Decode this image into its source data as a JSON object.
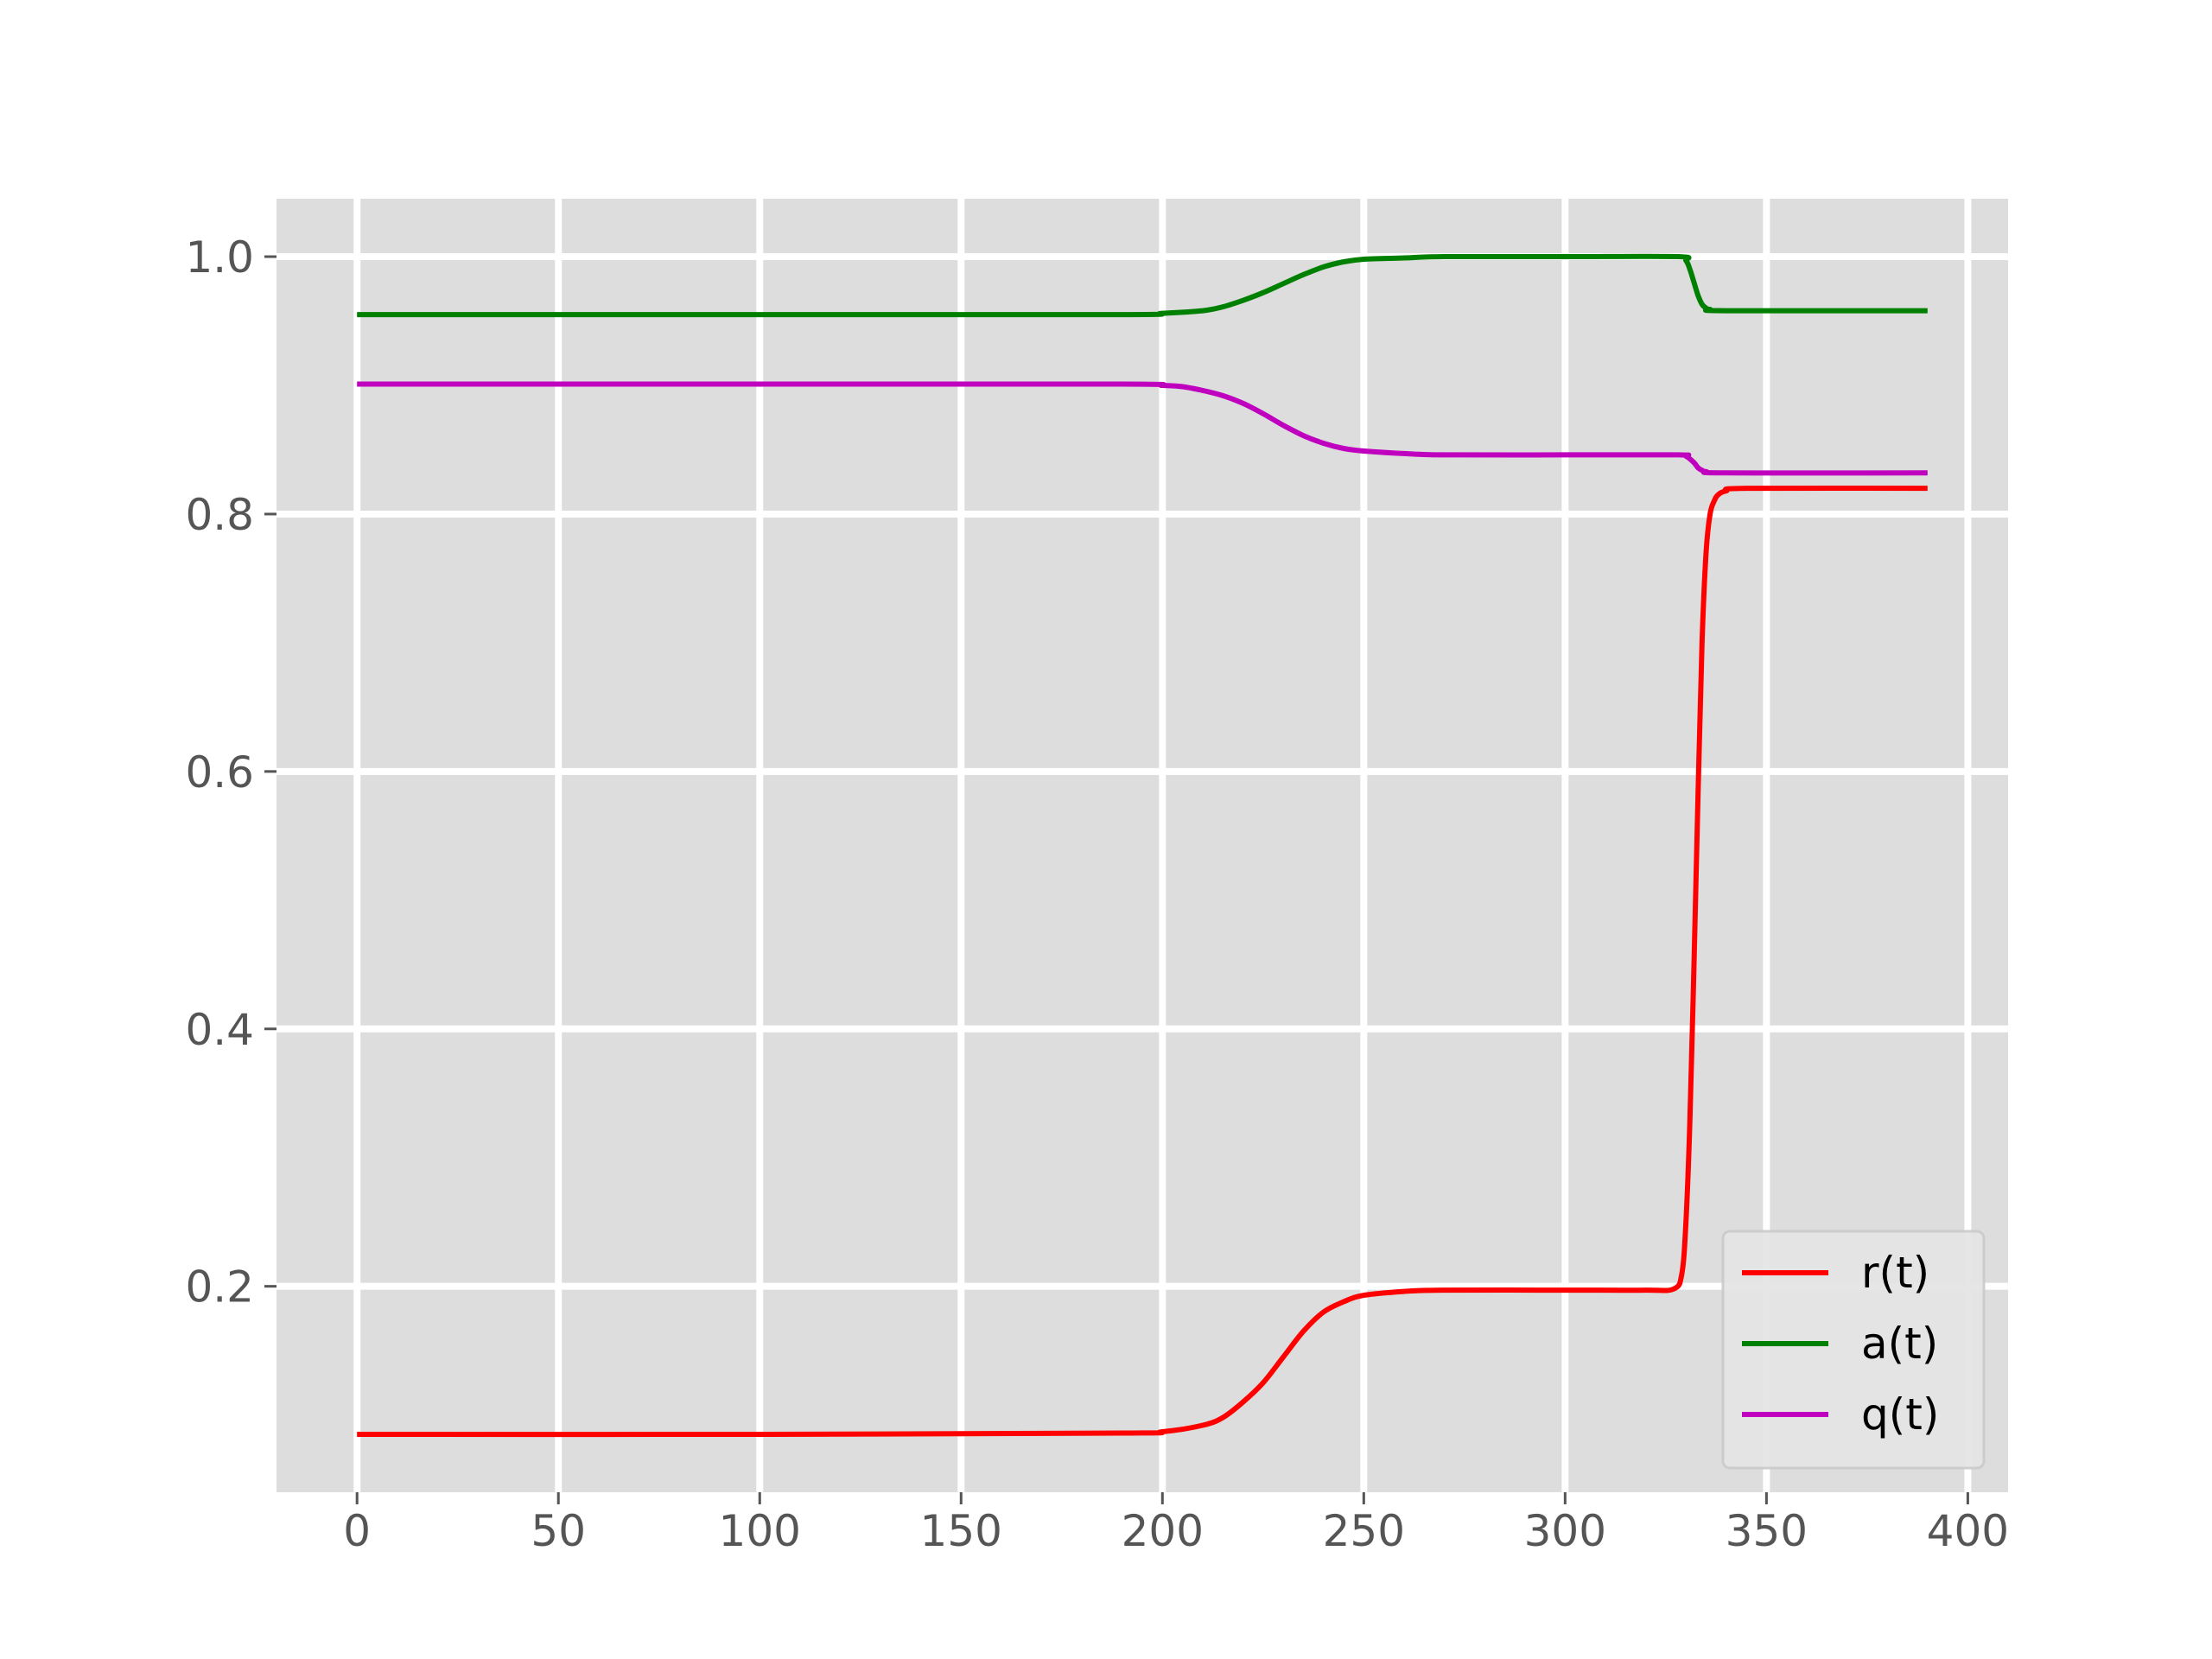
{
  "chart_data": {
    "type": "line",
    "title": "",
    "xlabel": "",
    "ylabel": "",
    "xlim": [
      -20,
      410
    ],
    "ylim": [
      0.04,
      1.045
    ],
    "x_ticks": [
      0,
      50,
      100,
      150,
      200,
      250,
      300,
      350,
      400
    ],
    "x_tick_labels": [
      "0",
      "50",
      "100",
      "150",
      "200",
      "250",
      "300",
      "350",
      "400"
    ],
    "y_ticks": [
      0.2,
      0.4,
      0.6,
      0.8,
      1.0
    ],
    "y_tick_labels": [
      "0.2",
      "0.4",
      "0.6",
      "0.8",
      "1.0"
    ],
    "grid": true,
    "background_color": "#dddddd",
    "grid_color": "#ffffff",
    "legend": {
      "placement": "lower-right"
    },
    "series": [
      {
        "name": "r(t)",
        "color": "#ff0000",
        "points": [
          [
            0,
            0.085
          ],
          [
            100,
            0.085
          ],
          [
            190,
            0.086
          ],
          [
            200,
            0.087
          ],
          [
            210,
            0.092
          ],
          [
            215,
            0.098
          ],
          [
            220,
            0.11
          ],
          [
            225,
            0.125
          ],
          [
            230,
            0.145
          ],
          [
            235,
            0.165
          ],
          [
            240,
            0.18
          ],
          [
            245,
            0.188
          ],
          [
            250,
            0.193
          ],
          [
            260,
            0.196
          ],
          [
            270,
            0.197
          ],
          [
            300,
            0.197
          ],
          [
            320,
            0.197
          ],
          [
            327,
            0.198
          ],
          [
            329,
            0.21
          ],
          [
            330,
            0.25
          ],
          [
            331,
            0.33
          ],
          [
            332,
            0.45
          ],
          [
            333,
            0.58
          ],
          [
            334,
            0.7
          ],
          [
            335,
            0.77
          ],
          [
            336,
            0.8
          ],
          [
            337,
            0.81
          ],
          [
            338,
            0.815
          ],
          [
            340,
            0.818
          ],
          [
            345,
            0.82
          ],
          [
            390,
            0.82
          ]
        ]
      },
      {
        "name": "a(t)",
        "color": "#008000",
        "points": [
          [
            0,
            0.955
          ],
          [
            100,
            0.955
          ],
          [
            190,
            0.955
          ],
          [
            200,
            0.956
          ],
          [
            210,
            0.958
          ],
          [
            215,
            0.961
          ],
          [
            220,
            0.966
          ],
          [
            225,
            0.972
          ],
          [
            230,
            0.979
          ],
          [
            235,
            0.986
          ],
          [
            240,
            0.992
          ],
          [
            245,
            0.996
          ],
          [
            250,
            0.998
          ],
          [
            260,
            0.999
          ],
          [
            270,
            1.0
          ],
          [
            300,
            1.0
          ],
          [
            328,
            1.0
          ],
          [
            330,
            0.997
          ],
          [
            331,
            0.99
          ],
          [
            332,
            0.98
          ],
          [
            333,
            0.97
          ],
          [
            334,
            0.963
          ],
          [
            335,
            0.96
          ],
          [
            336,
            0.959
          ],
          [
            340,
            0.958
          ],
          [
            390,
            0.958
          ]
        ]
      },
      {
        "name": "q(t)",
        "color": "#bf00bf",
        "points": [
          [
            0,
            0.901
          ],
          [
            100,
            0.901
          ],
          [
            190,
            0.901
          ],
          [
            200,
            0.9
          ],
          [
            205,
            0.899
          ],
          [
            210,
            0.896
          ],
          [
            215,
            0.892
          ],
          [
            220,
            0.886
          ],
          [
            225,
            0.878
          ],
          [
            230,
            0.869
          ],
          [
            235,
            0.861
          ],
          [
            240,
            0.855
          ],
          [
            245,
            0.851
          ],
          [
            250,
            0.849
          ],
          [
            260,
            0.847
          ],
          [
            270,
            0.846
          ],
          [
            300,
            0.846
          ],
          [
            328,
            0.846
          ],
          [
            330,
            0.845
          ],
          [
            332,
            0.84
          ],
          [
            333,
            0.836
          ],
          [
            334,
            0.834
          ],
          [
            335,
            0.833
          ],
          [
            340,
            0.832
          ],
          [
            390,
            0.832
          ]
        ]
      }
    ]
  }
}
